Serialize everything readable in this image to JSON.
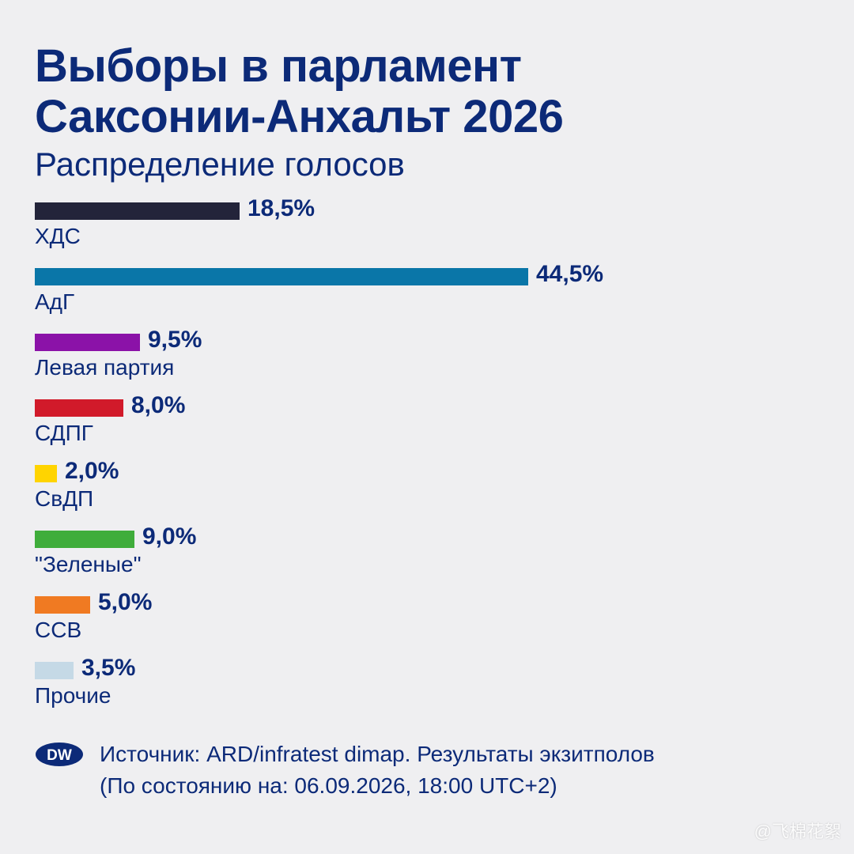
{
  "title_line1": "Выборы в парламент",
  "title_line2": "Саксонии-Анхальт 2026",
  "subtitle": "Распределение голосов",
  "chart_data": {
    "type": "bar",
    "orientation": "horizontal",
    "title": "Выборы в парламент Саксонии-Анхальт 2026",
    "subtitle": "Распределение голосов",
    "xlim": [
      0,
      44.5
    ],
    "grid": false,
    "bars": [
      {
        "party": "ХДС",
        "value": 18.5,
        "value_label": "18,5%",
        "color": "#23243a"
      },
      {
        "party": "АдГ",
        "value": 44.5,
        "value_label": "44,5%",
        "color": "#0a76a8"
      },
      {
        "party": "Левая партия",
        "value": 9.5,
        "value_label": "9,5%",
        "color": "#8b12a8"
      },
      {
        "party": "СДПГ",
        "value": 8.0,
        "value_label": "8,0%",
        "color": "#d11a2a"
      },
      {
        "party": "СвДП",
        "value": 2.0,
        "value_label": "2,0%",
        "color": "#ffd400"
      },
      {
        "party": "\"Зеленые\"",
        "value": 9.0,
        "value_label": "9,0%",
        "color": "#3fad3b"
      },
      {
        "party": "ССВ",
        "value": 5.0,
        "value_label": "5,0%",
        "color": "#f07a22"
      },
      {
        "party": "Прочие",
        "value": 3.5,
        "value_label": "3,5%",
        "color": "#c5d9e6"
      }
    ]
  },
  "footer": {
    "logo_text": "DW",
    "logo_color": "#0c2a78",
    "source_line1": "Источник: ARD/infratest dimap. Результаты экзитполов",
    "source_line2": "(По состоянию на: 06.09.2026, 18:00 UTC+2)"
  },
  "watermark": "@飞棉花絮"
}
